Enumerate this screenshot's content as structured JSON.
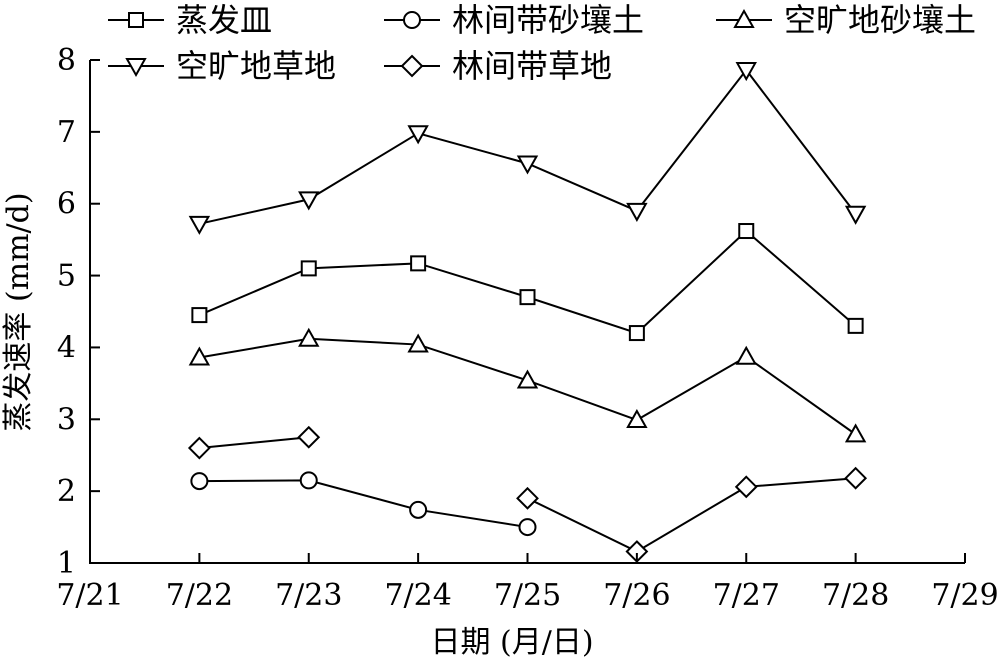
{
  "chart_data": {
    "type": "line",
    "xlabel": "日期 (月/日)",
    "ylabel": "蒸发速率 (mm/d)",
    "xlim": [
      21,
      29
    ],
    "ylim": [
      1,
      8
    ],
    "x_ticks": [
      "7/21",
      "7/22",
      "7/23",
      "7/24",
      "7/25",
      "7/26",
      "7/27",
      "7/28",
      "7/29"
    ],
    "y_ticks": [
      "1",
      "2",
      "3",
      "4",
      "5",
      "6",
      "7",
      "8"
    ],
    "legend_position": "top",
    "series": [
      {
        "name": "蒸发皿",
        "marker": "square",
        "x": [
          "7/22",
          "7/23",
          "7/24",
          "7/25",
          "7/26",
          "7/27",
          "7/28"
        ],
        "values": [
          4.45,
          5.1,
          5.17,
          4.7,
          4.2,
          5.62,
          4.3
        ],
        "connected": true
      },
      {
        "name": "林间带砂壤土",
        "marker": "circle",
        "x": [
          "7/22",
          "7/23",
          "7/24",
          "7/25"
        ],
        "values": [
          2.14,
          2.15,
          1.74,
          1.5
        ],
        "connected": true
      },
      {
        "name": "空旷地砂壤土",
        "marker": "triangle-up",
        "x": [
          "7/22",
          "7/23",
          "7/24",
          "7/25",
          "7/26",
          "7/27",
          "7/28"
        ],
        "values": [
          3.86,
          4.12,
          4.04,
          3.54,
          2.99,
          3.87,
          2.79
        ],
        "connected": true
      },
      {
        "name": "空旷地草地",
        "marker": "triangle-down",
        "x": [
          "7/22",
          "7/23",
          "7/24",
          "7/25",
          "7/26",
          "7/27",
          "7/28"
        ],
        "values": [
          5.72,
          6.06,
          6.98,
          6.56,
          5.9,
          7.86,
          5.86
        ],
        "connected": true
      },
      {
        "name": "林间带草地",
        "marker": "diamond",
        "x": [
          "7/22",
          "7/23",
          "7/25",
          "7/26",
          "7/27",
          "7/28"
        ],
        "values": [
          2.6,
          2.75,
          1.9,
          1.16,
          2.06,
          2.18
        ],
        "connected": false,
        "segments": [
          [
            "7/22",
            "7/23"
          ],
          [
            "7/25",
            "7/26",
            "7/27",
            "7/28"
          ]
        ]
      }
    ]
  }
}
